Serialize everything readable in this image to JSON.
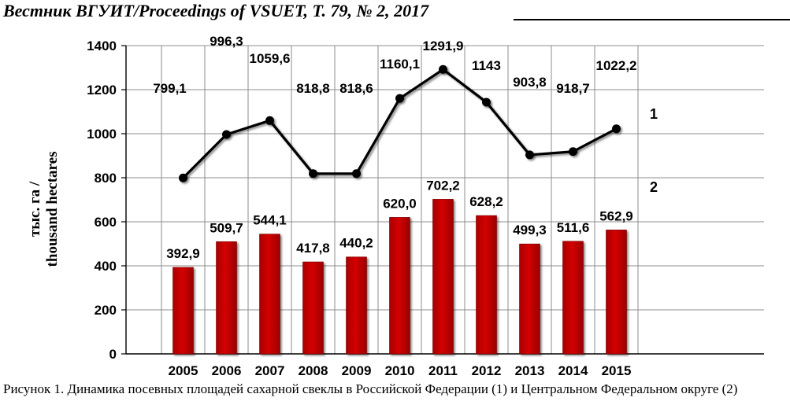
{
  "header": {
    "text": "Вестник ВГУИТ/Proceedings of VSUET, Т. 79, № 2, 2017"
  },
  "chart_data": {
    "type": "bar+line",
    "categories": [
      "2005",
      "2006",
      "2007",
      "2008",
      "2009",
      "2010",
      "2011",
      "2012",
      "2013",
      "2014",
      "2015"
    ],
    "series": [
      {
        "name": "1",
        "type": "line",
        "color": "#000000",
        "values": [
          799.1,
          996.3,
          1059.6,
          818.8,
          818.6,
          1160.1,
          1291.9,
          1143,
          903.8,
          918.7,
          1022.2
        ],
        "labels": [
          "799,1",
          "996,3",
          "1059,6",
          "818,8",
          "818,6",
          "1160,1",
          "1291,9",
          "1143",
          "903,8",
          "918,7",
          "1022,2"
        ]
      },
      {
        "name": "2",
        "type": "bar",
        "color": "#c00000",
        "values": [
          392.9,
          509.7,
          544.1,
          417.8,
          440.2,
          620.0,
          702.2,
          628.2,
          499.3,
          511.6,
          562.9
        ],
        "labels": [
          "392,9",
          "509,7",
          "544,1",
          "417,8",
          "440,2",
          "620,0",
          "702,2",
          "628,2",
          "499,3",
          "511,6",
          "562,9"
        ]
      }
    ],
    "ylabel_line1": "тыс. га /",
    "ylabel_line2": "thousand hectares",
    "ylim": [
      0,
      1400
    ],
    "yticks": [
      0,
      200,
      400,
      600,
      800,
      1000,
      1200,
      1400
    ],
    "grid": true
  },
  "caption": "Рисунок 1. Динамика посевных площадей сахарной свеклы в Российской Федерации (1) и Центральном Федеральном округе (2)"
}
